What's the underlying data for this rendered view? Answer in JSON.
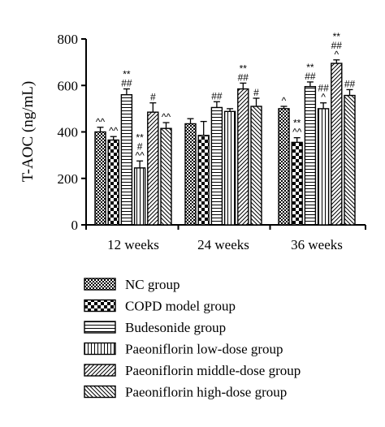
{
  "chart_data": {
    "type": "bar",
    "ylabel": "T-AOC (ng/mL)",
    "xlabel": "",
    "ylim": [
      0,
      800
    ],
    "yticks": [
      0,
      200,
      400,
      600,
      800
    ],
    "categories": [
      "12 weeks",
      "24 weeks",
      "36 weeks"
    ],
    "grid": false,
    "legend_position": "bottom",
    "series": [
      {
        "name": "NC group",
        "pattern": "checker-small",
        "values": [
          400,
          435,
          500
        ],
        "errors": [
          20,
          22,
          10
        ],
        "annotations": [
          [
            "^^"
          ],
          [],
          [
            "^"
          ]
        ]
      },
      {
        "name": "COPD model group",
        "pattern": "checker-large",
        "values": [
          365,
          385,
          355
        ],
        "errors": [
          15,
          60,
          20
        ],
        "annotations": [
          [
            "^^"
          ],
          [],
          [
            "^^",
            "**"
          ]
        ]
      },
      {
        "name": "Budesonide group",
        "pattern": "horizontal",
        "values": [
          560,
          505,
          595
        ],
        "errors": [
          25,
          25,
          20
        ],
        "annotations": [
          [
            "##",
            "**"
          ],
          [
            "##"
          ],
          [
            "##",
            "**"
          ]
        ]
      },
      {
        "name": "Paeoniflorin low-dose group",
        "pattern": "vertical",
        "values": [
          245,
          488,
          500
        ],
        "errors": [
          30,
          12,
          25
        ],
        "annotations": [
          [
            "^^",
            "#",
            "**"
          ],
          [],
          [
            "^",
            "##"
          ]
        ]
      },
      {
        "name": "Paeoniflorin middle-dose group",
        "pattern": "diag-up",
        "values": [
          485,
          585,
          695
        ],
        "errors": [
          40,
          25,
          15
        ],
        "annotations": [
          [
            "#"
          ],
          [
            "##",
            "**"
          ],
          [
            "^",
            "##",
            "**"
          ]
        ]
      },
      {
        "name": "Paeoniflorin high-dose group",
        "pattern": "diag-down",
        "values": [
          415,
          510,
          557
        ],
        "errors": [
          25,
          35,
          25
        ],
        "annotations": [
          [
            "^^"
          ],
          [
            "#"
          ],
          [
            "##"
          ]
        ]
      }
    ]
  }
}
